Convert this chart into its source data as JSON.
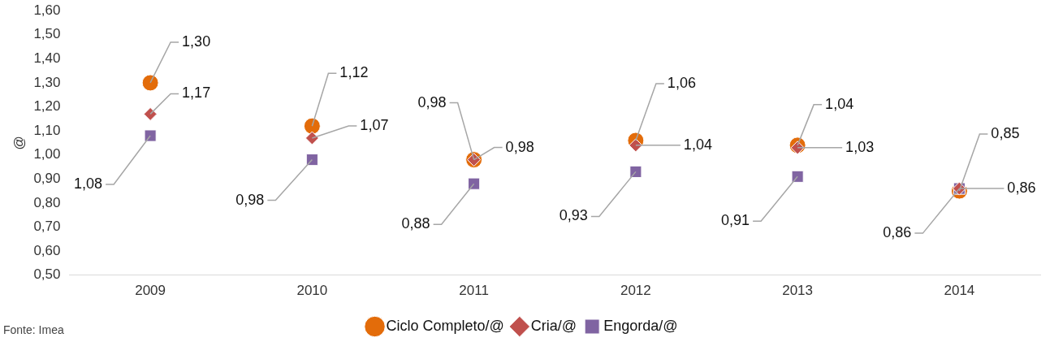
{
  "chart_data": {
    "type": "scatter",
    "ylabel": "@",
    "categories": [
      "2009",
      "2010",
      "2011",
      "2012",
      "2013",
      "2014"
    ],
    "series": [
      {
        "name": "Ciclo Completo/@",
        "color": "#e36c0a",
        "marker": "circle",
        "values": [
          1.3,
          1.12,
          0.98,
          1.06,
          1.04,
          0.85
        ],
        "value_labels": [
          "1,30",
          "1,12",
          "0,98",
          "1,06",
          "1,04",
          "0,85"
        ]
      },
      {
        "name": "Cria/@",
        "color": "#c0504d",
        "marker": "diamond",
        "values": [
          1.17,
          1.07,
          0.98,
          1.04,
          1.03,
          0.86
        ],
        "value_labels": [
          "1,17",
          "1,07",
          "0,98",
          "1,04",
          "1,03",
          "0,86"
        ]
      },
      {
        "name": "Engorda/@",
        "color": "#8064a2",
        "marker": "square",
        "values": [
          1.08,
          0.98,
          0.88,
          0.93,
          0.91,
          0.86
        ],
        "value_labels": [
          "1,08",
          "0,98",
          "0,88",
          "0,93",
          "0,91",
          "0,86"
        ]
      }
    ],
    "ylim": [
      0.5,
      1.6
    ],
    "yticks": [
      {
        "value": 0.5,
        "label": "0,50"
      },
      {
        "value": 0.6,
        "label": "0,60"
      },
      {
        "value": 0.7,
        "label": "0,70"
      },
      {
        "value": 0.8,
        "label": "0,80"
      },
      {
        "value": 0.9,
        "label": "0,90"
      },
      {
        "value": 1.0,
        "label": "1,00"
      },
      {
        "value": 1.1,
        "label": "1,10"
      },
      {
        "value": 1.2,
        "label": "1,20"
      },
      {
        "value": 1.3,
        "label": "1,30"
      },
      {
        "value": 1.4,
        "label": "1,40"
      },
      {
        "value": 1.5,
        "label": "1,50"
      },
      {
        "value": 1.6,
        "label": "1,60"
      }
    ],
    "grid": false,
    "legend": "bottom",
    "annotations": [
      "Fonte: Imea"
    ]
  }
}
